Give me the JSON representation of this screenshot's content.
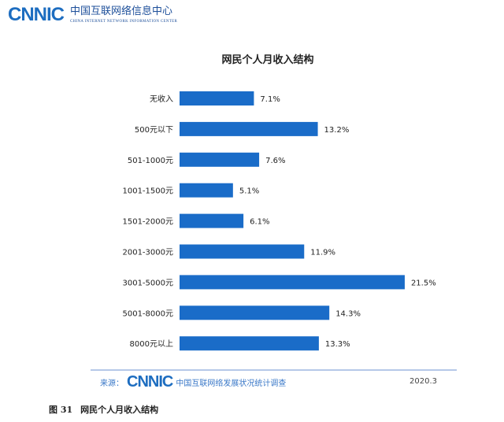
{
  "header": {
    "logo": "CNNIC",
    "org_cn": "中国互联网络信息中心",
    "org_en": "CHINA INTERNET NETWORK INFORMATION CENTER"
  },
  "chart_data": {
    "type": "bar",
    "orientation": "horizontal",
    "title": "网民个人月收入结构",
    "categories": [
      "无收入",
      "500元以下",
      "501-1000元",
      "1001-1500元",
      "1501-2000元",
      "2001-3000元",
      "3001-5000元",
      "5001-8000元",
      "8000元以上"
    ],
    "values": [
      7.1,
      13.2,
      7.6,
      5.1,
      6.1,
      11.9,
      21.5,
      14.3,
      13.3
    ],
    "labels": [
      "7.1%",
      "13.2%",
      "7.6%",
      "5.1%",
      "6.1%",
      "11.9%",
      "21.5%",
      "14.3%",
      "13.3%"
    ],
    "unit": "%",
    "bar_color": "#1a6cc8",
    "grid": false
  },
  "footer": {
    "source_label": "来源：",
    "source_logo": "CNNIC",
    "source_name": "中国互联网络发展状况统计调查",
    "date": "2020.3"
  },
  "caption": {
    "number": "图 31",
    "text": "网民个人月收入结构"
  }
}
